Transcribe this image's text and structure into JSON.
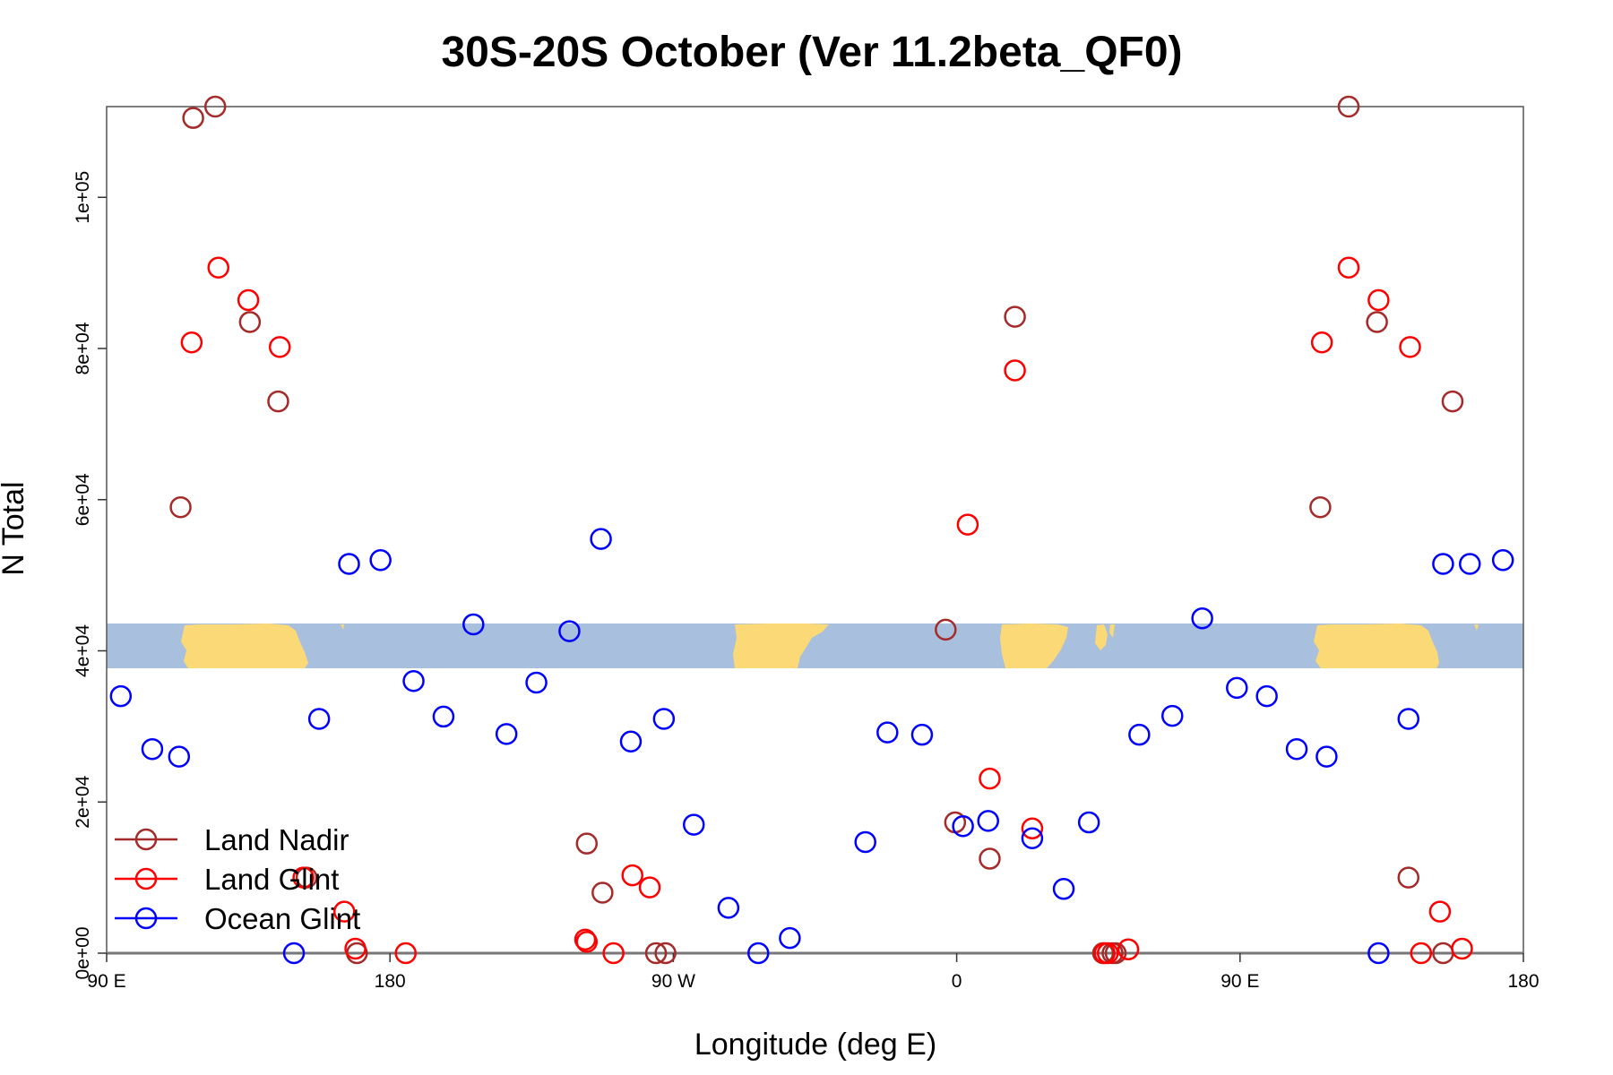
{
  "chart_data": {
    "type": "scatter",
    "title": "30S-20S October (Ver 11.2beta_QF0)",
    "xlabel": "Longitude (deg E)",
    "ylabel": "N Total",
    "xlim": [
      90,
      540
    ],
    "ylim": [
      0,
      112000
    ],
    "x_ticks": [
      {
        "value": 90,
        "label": "90 E"
      },
      {
        "value": 180,
        "label": "180"
      },
      {
        "value": 270,
        "label": "90 W"
      },
      {
        "value": 360,
        "label": "0"
      },
      {
        "value": 450,
        "label": "90 E"
      },
      {
        "value": 540,
        "label": "180"
      }
    ],
    "y_ticks": [
      {
        "value": 0,
        "label": "0e+00"
      },
      {
        "value": 20000,
        "label": "2e+04"
      },
      {
        "value": 40000,
        "label": "4e+04"
      },
      {
        "value": 60000,
        "label": "6e+04"
      },
      {
        "value": 80000,
        "label": "8e+04"
      },
      {
        "value": 100000,
        "label": "1e+05"
      }
    ],
    "grid": false,
    "legend": {
      "position": "bottom-left"
    },
    "map_band": {
      "description": "latitude band 30S-20S map strip",
      "y_range": [
        37500,
        43500
      ],
      "ocean_color": "#a8bfdd",
      "land_color": "#fbd976"
    },
    "series": [
      {
        "name": "Land Nadir",
        "color": "#a52a2a",
        "x": [
          124.5,
          113.5,
          135.5,
          144.5,
          117.5,
          153.5,
          169.5,
          242.5,
          247.5,
          264.5,
          267.5,
          378.5,
          356.5,
          359.5,
          370.5,
          409.5,
          406.5,
          410.5,
          484.5,
          475.5,
          493.5,
          517.5,
          503.5,
          514.5
        ],
        "y": [
          112000,
          59000,
          83500,
          73000,
          110500,
          10000,
          0,
          14500,
          8000,
          0,
          0,
          84200,
          42800,
          17300,
          12500,
          0,
          0,
          0,
          112000,
          59000,
          83500,
          73000,
          10000,
          0
        ]
      },
      {
        "name": "Land Glint",
        "color": "#ff0000",
        "x": [
          117.0,
          125.5,
          135.0,
          145.0,
          152.5,
          165.5,
          169.0,
          185.0,
          251.0,
          242.0,
          242.5,
          257.0,
          262.5,
          363.5,
          378.5,
          370.5,
          384.0,
          407.0,
          408.0,
          414.5,
          476.0,
          484.5,
          494.0,
          504.0,
          513.5,
          507.5,
          520.5
        ],
        "y": [
          80800,
          90700,
          86400,
          80200,
          10000,
          5500,
          600,
          0,
          0,
          1800,
          1500,
          10300,
          8700,
          56700,
          77100,
          23100,
          16500,
          0,
          0,
          500,
          80800,
          90700,
          86400,
          80200,
          5500,
          0,
          600
        ]
      },
      {
        "name": "Ocean Glint",
        "color": "#0000ff",
        "x": [
          94.5,
          104.5,
          113.0,
          149.5,
          157.5,
          167.0,
          177.0,
          187.5,
          197.0,
          206.5,
          217.0,
          226.5,
          237.0,
          247.0,
          256.5,
          267.0,
          276.5,
          287.5,
          297.0,
          307.0,
          331.0,
          338.0,
          349.0,
          362.0,
          370.0,
          384.0,
          394.0,
          402.0,
          418.0,
          428.5,
          438.0,
          449.0,
          458.5,
          468.0,
          477.5,
          494.0,
          503.5,
          514.5,
          523.0,
          533.5
        ],
        "y": [
          34000,
          27000,
          26000,
          0,
          31000,
          51500,
          52000,
          36000,
          31300,
          43500,
          29000,
          35800,
          42600,
          54800,
          28000,
          31000,
          17000,
          6000,
          0,
          2000,
          14700,
          29200,
          28900,
          16800,
          17500,
          15200,
          8500,
          17300,
          28900,
          31400,
          44300,
          35100,
          34000,
          27000,
          26000,
          0,
          31000,
          51500,
          51500,
          52000
        ]
      }
    ]
  }
}
